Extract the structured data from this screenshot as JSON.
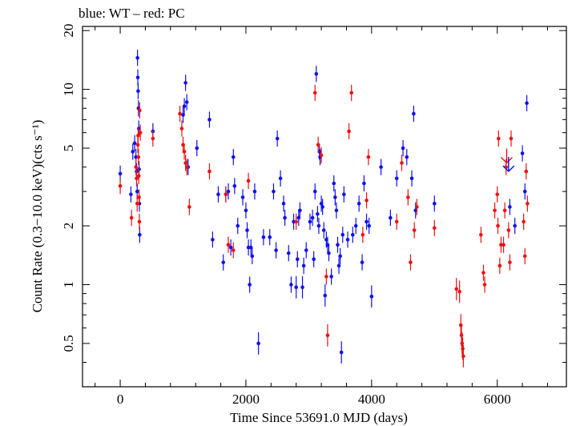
{
  "chart_data": {
    "type": "scatter",
    "title": "blue: WT – red: PC",
    "xlabel": "Time Since 53691.0 MJD (days)",
    "ylabel": "Count Rate (0.3−10.0 keV)(cts s⁻¹)",
    "yscale": "log",
    "xlim": [
      -600,
      7100
    ],
    "ylim": [
      0.3,
      21
    ],
    "x_ticks": [
      0,
      2000,
      4000,
      6000
    ],
    "x_tick_labels": [
      "0",
      "2000",
      "4000",
      "6000"
    ],
    "y_ticks": [
      0.5,
      1,
      2,
      5,
      10,
      20
    ],
    "y_tick_labels": [
      "0.5",
      "1",
      "2",
      "5",
      "10",
      "20"
    ],
    "grid": false,
    "legend": "none",
    "series": [
      {
        "mode": "WT",
        "color": "#1010ee",
        "points": [
          [
            0,
            3.7
          ],
          [
            170,
            2.9
          ],
          [
            200,
            4.8
          ],
          [
            230,
            5.3
          ],
          [
            250,
            4.5
          ],
          [
            260,
            3.8
          ],
          [
            270,
            3.0
          ],
          [
            275,
            14.5
          ],
          [
            280,
            11.5
          ],
          [
            285,
            9.8
          ],
          [
            290,
            8.0
          ],
          [
            295,
            6.3
          ],
          [
            300,
            3.9
          ],
          [
            305,
            2.6
          ],
          [
            310,
            1.8
          ],
          [
            520,
            6.1
          ],
          [
            1000,
            7.4
          ],
          [
            1020,
            8.2
          ],
          [
            1040,
            10.8
          ],
          [
            1060,
            8.6
          ],
          [
            1080,
            4.0
          ],
          [
            1220,
            5.0
          ],
          [
            1420,
            7.0
          ],
          [
            1470,
            1.7
          ],
          [
            1560,
            2.9
          ],
          [
            1640,
            1.3
          ],
          [
            1680,
            2.9
          ],
          [
            1720,
            3.0
          ],
          [
            1760,
            1.55
          ],
          [
            1800,
            4.5
          ],
          [
            1820,
            3.2
          ],
          [
            1870,
            2.0
          ],
          [
            1950,
            2.8
          ],
          [
            2000,
            2.4
          ],
          [
            2020,
            1.9
          ],
          [
            2040,
            1.55
          ],
          [
            2060,
            1.0
          ],
          [
            2080,
            1.55
          ],
          [
            2100,
            1.4
          ],
          [
            2140,
            3.0
          ],
          [
            2200,
            0.5
          ],
          [
            2280,
            1.75
          ],
          [
            2380,
            1.75
          ],
          [
            2440,
            3.0
          ],
          [
            2480,
            1.5
          ],
          [
            2500,
            5.6
          ],
          [
            2550,
            3.5
          ],
          [
            2600,
            2.6
          ],
          [
            2620,
            2.2
          ],
          [
            2680,
            1.45
          ],
          [
            2720,
            1.0
          ],
          [
            2760,
            2.1
          ],
          [
            2800,
            0.97
          ],
          [
            2820,
            1.35
          ],
          [
            2840,
            2.2
          ],
          [
            2860,
            2.4
          ],
          [
            2900,
            0.97
          ],
          [
            2920,
            1.25
          ],
          [
            2960,
            1.5
          ],
          [
            3020,
            2.1
          ],
          [
            3060,
            2.2
          ],
          [
            3080,
            1.35
          ],
          [
            3100,
            3.0
          ],
          [
            3120,
            12.0
          ],
          [
            3140,
            2.3
          ],
          [
            3160,
            2.0
          ],
          [
            3170,
            4.8
          ],
          [
            3180,
            4.5
          ],
          [
            3200,
            2.6
          ],
          [
            3220,
            2.5
          ],
          [
            3240,
            1.9
          ],
          [
            3260,
            0.88
          ],
          [
            3280,
            1.7
          ],
          [
            3300,
            1.6
          ],
          [
            3320,
            1.45
          ],
          [
            3360,
            1.1
          ],
          [
            3400,
            3.3
          ],
          [
            3420,
            2.8
          ],
          [
            3440,
            2.4
          ],
          [
            3460,
            1.6
          ],
          [
            3480,
            1.25
          ],
          [
            3500,
            1.4
          ],
          [
            3520,
            0.45
          ],
          [
            3540,
            1.8
          ],
          [
            3560,
            2.9
          ],
          [
            3620,
            1.7
          ],
          [
            3700,
            1.8
          ],
          [
            3750,
            2.0
          ],
          [
            3800,
            2.6
          ],
          [
            3850,
            1.3
          ],
          [
            3880,
            3.3
          ],
          [
            3920,
            2.1
          ],
          [
            3960,
            2.0
          ],
          [
            4000,
            0.87
          ],
          [
            4150,
            4.0
          ],
          [
            4300,
            2.2
          ],
          [
            4400,
            3.5
          ],
          [
            4500,
            5.0
          ],
          [
            4560,
            4.5
          ],
          [
            4640,
            3.5
          ],
          [
            4670,
            7.5
          ],
          [
            4700,
            2.4
          ],
          [
            5000,
            2.6
          ],
          [
            6200,
            2.5
          ],
          [
            6280,
            2.0
          ],
          [
            6400,
            4.7
          ],
          [
            6440,
            3.0
          ],
          [
            6470,
            8.5
          ]
        ]
      },
      {
        "mode": "PC",
        "color": "#ee1010",
        "points": [
          [
            0,
            3.2
          ],
          [
            180,
            2.2
          ],
          [
            250,
            4.0
          ],
          [
            260,
            3.5
          ],
          [
            270,
            2.6
          ],
          [
            280,
            5.2
          ],
          [
            285,
            5.8
          ],
          [
            290,
            4.5
          ],
          [
            295,
            3.6
          ],
          [
            300,
            2.8
          ],
          [
            305,
            2.1
          ],
          [
            310,
            7.8
          ],
          [
            320,
            6.0
          ],
          [
            520,
            5.6
          ],
          [
            950,
            7.5
          ],
          [
            980,
            6.3
          ],
          [
            1000,
            5.2
          ],
          [
            1020,
            4.8
          ],
          [
            1040,
            4.2
          ],
          [
            1060,
            4.0
          ],
          [
            1100,
            2.5
          ],
          [
            1420,
            3.8
          ],
          [
            1680,
            2.9
          ],
          [
            1720,
            1.6
          ],
          [
            1800,
            1.5
          ],
          [
            2040,
            3.4
          ],
          [
            2800,
            2.1
          ],
          [
            3100,
            9.6
          ],
          [
            3150,
            5.2
          ],
          [
            3200,
            4.6
          ],
          [
            3280,
            1.1
          ],
          [
            3300,
            0.55
          ],
          [
            3640,
            6.1
          ],
          [
            3680,
            9.6
          ],
          [
            3860,
            1.8
          ],
          [
            3920,
            2.7
          ],
          [
            3950,
            4.5
          ],
          [
            4400,
            2.1
          ],
          [
            4480,
            4.2
          ],
          [
            4580,
            2.8
          ],
          [
            4620,
            1.3
          ],
          [
            4680,
            1.9
          ],
          [
            4720,
            2.5
          ],
          [
            5000,
            1.95
          ],
          [
            5350,
            0.95
          ],
          [
            5400,
            0.92
          ],
          [
            5420,
            0.62
          ],
          [
            5430,
            0.55
          ],
          [
            5440,
            0.5
          ],
          [
            5450,
            0.47
          ],
          [
            5460,
            0.43
          ],
          [
            5740,
            1.8
          ],
          [
            5780,
            1.15
          ],
          [
            5800,
            1.0
          ],
          [
            5960,
            2.4
          ],
          [
            6000,
            2.9
          ],
          [
            6010,
            2.0
          ],
          [
            6020,
            5.6
          ],
          [
            6040,
            1.25
          ],
          [
            6060,
            1.6
          ],
          [
            6100,
            1.6
          ],
          [
            6120,
            2.4
          ],
          [
            6140,
            4.0
          ],
          [
            6180,
            1.9
          ],
          [
            6200,
            1.3
          ],
          [
            6220,
            5.6
          ],
          [
            6420,
            2.1
          ],
          [
            6440,
            1.4
          ],
          [
            6460,
            3.8
          ],
          [
            6480,
            2.6
          ]
        ]
      }
    ],
    "upper_limits": [
      {
        "mode": "PC",
        "color": "#ee1010",
        "x": 6150,
        "y": 4.2
      },
      {
        "mode": "WT",
        "color": "#1010ee",
        "x": 6180,
        "y": 3.8
      }
    ]
  }
}
